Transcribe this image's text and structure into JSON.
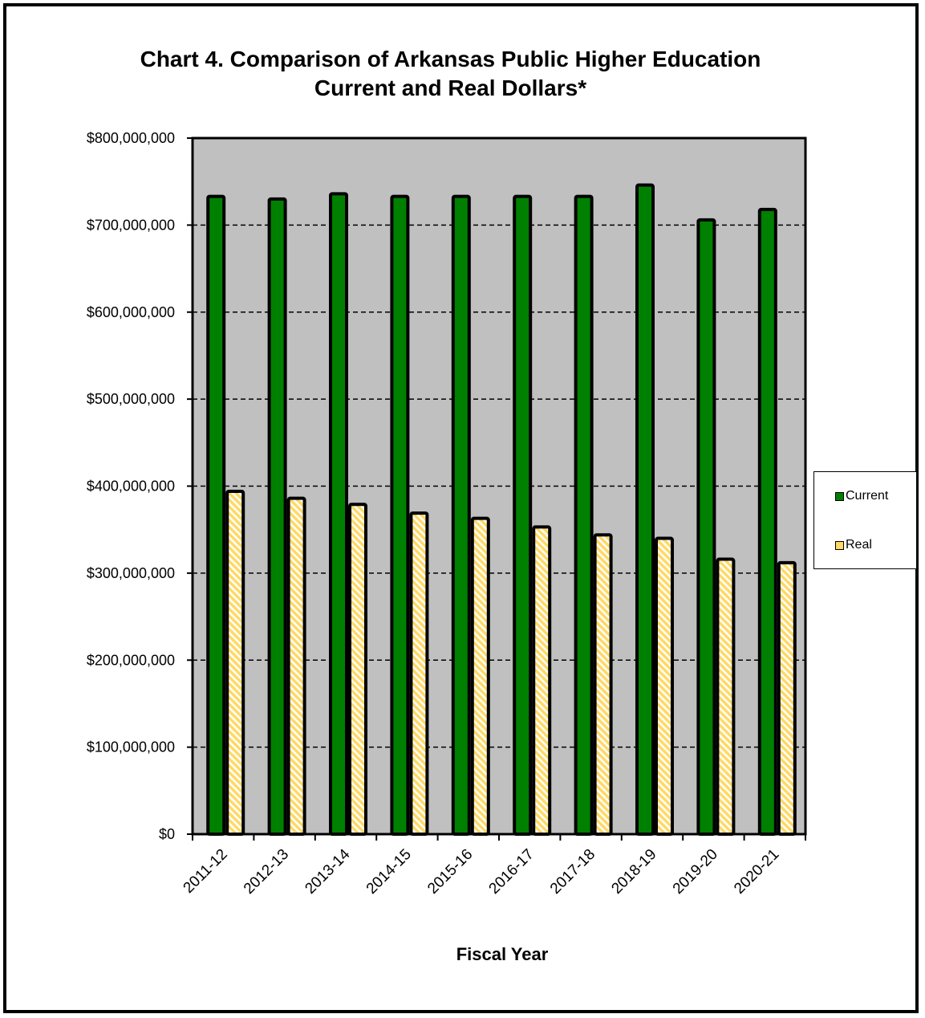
{
  "chart_data": {
    "type": "bar",
    "title_lines": [
      "Chart 4. Comparison of Arkansas Public Higher Education",
      "Current and Real Dollars*"
    ],
    "xlabel": "Fiscal Year",
    "ylabel": "",
    "categories": [
      "2011-12",
      "2012-13",
      "2013-14",
      "2014-15",
      "2015-16",
      "2016-17",
      "2017-18",
      "2018-19",
      "2019-20",
      "2020-21"
    ],
    "series": [
      {
        "name": "Current",
        "color": "#008000",
        "values": [
          733000000,
          730000000,
          736000000,
          733000000,
          733000000,
          733000000,
          733000000,
          746000000,
          706000000,
          718000000
        ]
      },
      {
        "name": "Real",
        "color": "#ffd966",
        "pattern": "diagonal-stripes",
        "values": [
          394000000,
          386000000,
          379000000,
          369000000,
          363000000,
          353000000,
          344000000,
          340000000,
          316000000,
          312000000
        ]
      }
    ],
    "ylim": [
      0,
      800000000
    ],
    "yticks": [
      0,
      100000000,
      200000000,
      300000000,
      400000000,
      500000000,
      600000000,
      700000000,
      800000000
    ],
    "ytick_labels": [
      "$0",
      "$100,000,000",
      "$200,000,000",
      "$300,000,000",
      "$400,000,000",
      "$500,000,000",
      "$600,000,000",
      "$700,000,000",
      "$800,000,000"
    ],
    "plot_background": "#c0c0c0",
    "grid": true,
    "grid_style": "dashed",
    "legend_position": "right"
  }
}
